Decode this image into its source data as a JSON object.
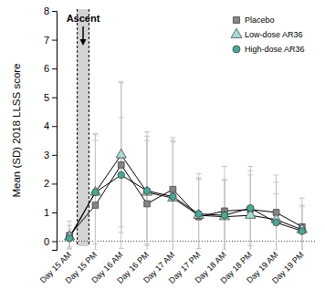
{
  "chart_data": {
    "type": "line",
    "y_label": "Mean (SD) 2018 LLSS score",
    "categories": [
      "Day 15 AM",
      "Day 15 PM",
      "Day 16 AM",
      "Day 16 PM",
      "Day 17 AM",
      "Day 17 PM",
      "Day 18 AM",
      "Day 18 PM",
      "Day 19 AM",
      "Day 19 PM"
    ],
    "series": [
      {
        "name": "Placebo",
        "color": "#858585",
        "marker": "square",
        "values": [
          0.2,
          1.25,
          2.65,
          1.3,
          1.8,
          0.85,
          1.05,
          1.1,
          1.0,
          0.5
        ],
        "errors": [
          0.5,
          2.5,
          2.9,
          2.5,
          1.8,
          1.5,
          1.55,
          1.5,
          1.3,
          1.0
        ]
      },
      {
        "name": "Low-dose AR36",
        "color": "#a8dcd3",
        "marker": "triangle",
        "values": [
          0.15,
          1.7,
          3.0,
          1.7,
          1.5,
          0.9,
          0.85,
          0.9,
          0.75,
          0.4
        ],
        "errors": [
          0.4,
          2.0,
          2.5,
          1.8,
          2.0,
          1.3,
          1.3,
          1.4,
          1.3,
          0.8
        ]
      },
      {
        "name": "High-dose AR36",
        "color": "#4aa897",
        "marker": "circle",
        "values": [
          0.1,
          1.7,
          2.3,
          1.75,
          1.55,
          0.95,
          0.9,
          1.15,
          0.65,
          0.35
        ],
        "errors": [
          0.3,
          1.8,
          2.0,
          1.9,
          1.9,
          1.2,
          1.2,
          1.3,
          1.0,
          0.9
        ]
      }
    ],
    "ylim": [
      -0.3,
      8
    ],
    "yticks": [
      0,
      1,
      2,
      3,
      4,
      5,
      6,
      7,
      8
    ],
    "hline": 0,
    "annotations": [
      {
        "text": "Ascent"
      }
    ],
    "legend": "upper right",
    "grid": false
  }
}
